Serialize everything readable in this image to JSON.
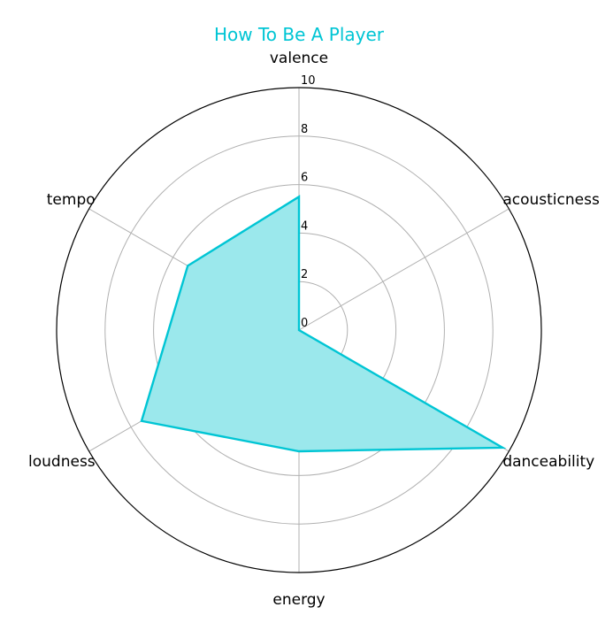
{
  "chart_data": {
    "type": "radar",
    "title": "How To Be A Player",
    "axes": [
      "valence",
      "acousticness",
      "danceability",
      "energy",
      "loudness",
      "tempo"
    ],
    "rlim": [
      0,
      10
    ],
    "rticks": [
      "0",
      "2",
      "4",
      "6",
      "8",
      "10"
    ],
    "series": [
      {
        "values": [
          5.5,
          0.0,
          9.7,
          5.0,
          7.5,
          5.3
        ]
      }
    ],
    "grid": true,
    "colors": {
      "title": "#00c5d4",
      "line": "#00c5d4",
      "fill": "#9be8ec",
      "grid": "#b0b0b0",
      "frame": "#000000"
    }
  }
}
